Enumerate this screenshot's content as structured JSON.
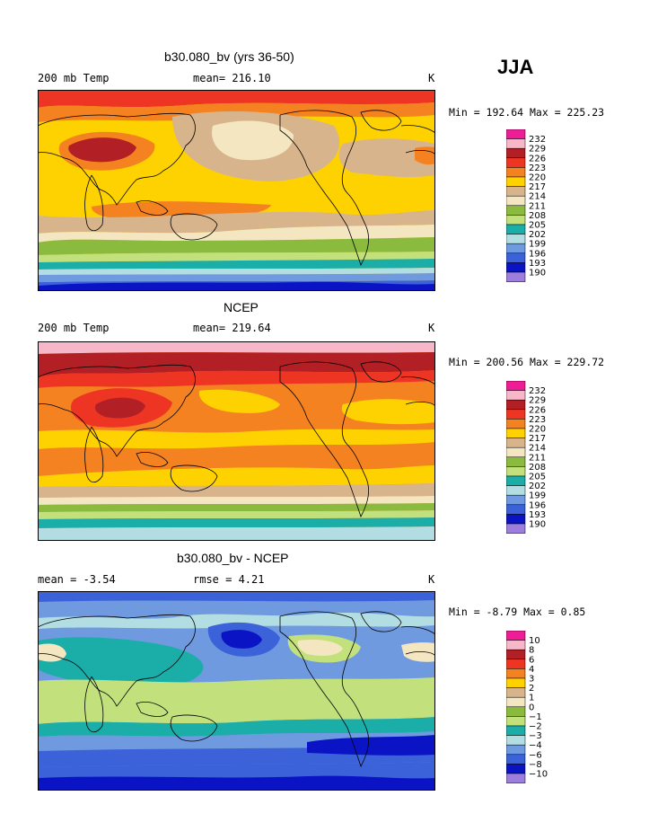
{
  "season": "JJA",
  "panels": [
    {
      "id": "model",
      "title": "b30.080_bv (yrs 36-50)",
      "left_label": "200 mb Temp",
      "mid_label": "mean= 216.10",
      "units": "K",
      "min_max": "Min = 192.64 Max = 225.23",
      "levels": [
        "232",
        "229",
        "226",
        "223",
        "220",
        "217",
        "214",
        "211",
        "208",
        "205",
        "202",
        "199",
        "196",
        "193",
        "190"
      ],
      "colors": [
        "#f01c96",
        "#f7b7c9",
        "#b22025",
        "#ee3524",
        "#f58220",
        "#fed200",
        "#d8b48c",
        "#f3e6c1",
        "#8bbb3e",
        "#c2e17d",
        "#1bada8",
        "#b2dde3",
        "#6f9ae0",
        "#3b62d9",
        "#0a14c4",
        "#9d7edc"
      ]
    },
    {
      "id": "obs",
      "title": "NCEP",
      "left_label": "200 mb Temp",
      "mid_label": "mean= 219.64",
      "units": "K",
      "min_max": "Min = 200.56 Max = 229.72",
      "levels": [
        "232",
        "229",
        "226",
        "223",
        "220",
        "217",
        "214",
        "211",
        "208",
        "205",
        "202",
        "199",
        "196",
        "193",
        "190"
      ],
      "colors": [
        "#f01c96",
        "#f7b7c9",
        "#b22025",
        "#ee3524",
        "#f58220",
        "#fed200",
        "#d8b48c",
        "#f3e6c1",
        "#8bbb3e",
        "#c2e17d",
        "#1bada8",
        "#b2dde3",
        "#6f9ae0",
        "#3b62d9",
        "#0a14c4",
        "#9d7edc"
      ]
    },
    {
      "id": "diff",
      "title": "b30.080_bv - NCEP",
      "left_label": "mean =   -3.54",
      "mid_label": "rmse =   4.21",
      "units": "K",
      "min_max": "Min =  -8.79 Max =   0.85",
      "levels": [
        "10",
        "8",
        "6",
        "4",
        "3",
        "2",
        "1",
        "0",
        "−1",
        "−2",
        "−3",
        "−4",
        "−6",
        "−8",
        "−10"
      ],
      "colors": [
        "#f01c96",
        "#f7b7c9",
        "#b22025",
        "#ee3524",
        "#f58220",
        "#fed200",
        "#d8b48c",
        "#f3e6c1",
        "#8bbb3e",
        "#c2e17d",
        "#1bada8",
        "#b2dde3",
        "#6f9ae0",
        "#3b62d9",
        "#0a14c4",
        "#9d7edc"
      ]
    }
  ]
}
